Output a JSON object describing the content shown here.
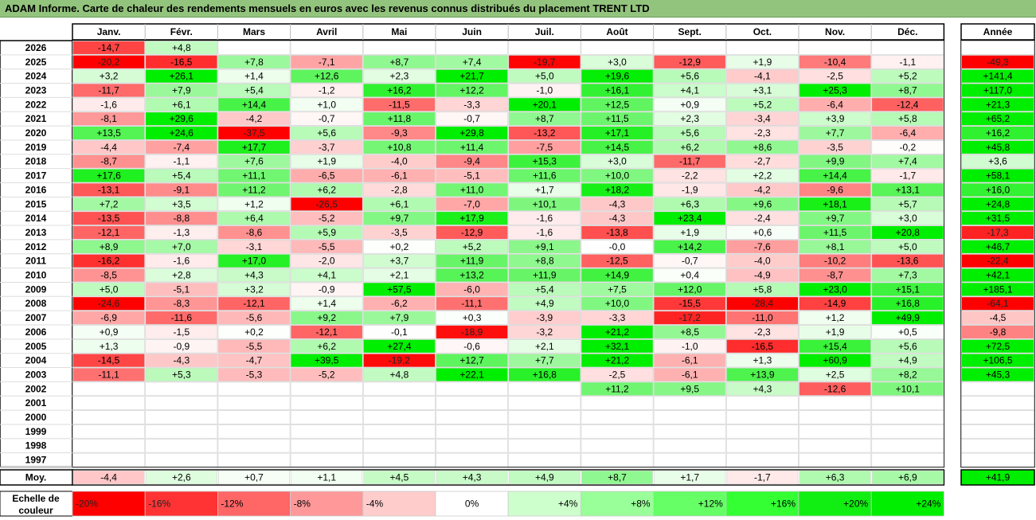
{
  "title": "ADAM Informe. Carte de chaleur des rendements mensuels en euros avec les revenus connus distribués du placement TRENT LTD",
  "chart_data": {
    "type": "heatmap",
    "months": [
      "Janv.",
      "Févr.",
      "Mars",
      "Avril",
      "Mai",
      "Juin",
      "Juil.",
      "Août",
      "Sept.",
      "Oct.",
      "Nov.",
      "Déc."
    ],
    "year_header": "Année",
    "rows": [
      {
        "year": "2026",
        "values": [
          "-14,7",
          "+4,8",
          "",
          "",
          "",
          "",
          "",
          "",
          "",
          "",
          "",
          ""
        ],
        "annual": ""
      },
      {
        "year": "2025",
        "values": [
          "-20,2",
          "-16,5",
          "+7,8",
          "-7,1",
          "+8,7",
          "+7,4",
          "-19,7",
          "+3,0",
          "-12,9",
          "+1,9",
          "-10,4",
          "-1,1"
        ],
        "annual": "-49,3"
      },
      {
        "year": "2024",
        "values": [
          "+3,2",
          "+26,1",
          "+1,4",
          "+12,6",
          "+2,3",
          "+21,7",
          "+5,0",
          "+19,6",
          "+5,6",
          "-4,1",
          "-2,5",
          "+5,2"
        ],
        "annual": "+141,4"
      },
      {
        "year": "2023",
        "values": [
          "-11,7",
          "+7,9",
          "+5,4",
          "-1,2",
          "+16,2",
          "+12,2",
          "-1,0",
          "+16,1",
          "+4,1",
          "+3,1",
          "+25,3",
          "+8,7"
        ],
        "annual": "+117,0"
      },
      {
        "year": "2022",
        "values": [
          "-1,6",
          "+6,1",
          "+14,4",
          "+1,0",
          "-11,5",
          "-3,3",
          "+20,1",
          "+12,5",
          "+0,9",
          "+5,2",
          "-6,4",
          "-12,4"
        ],
        "annual": "+21,3"
      },
      {
        "year": "2021",
        "values": [
          "-8,1",
          "+29,6",
          "-4,2",
          "-0,7",
          "+11,8",
          "-0,7",
          "+8,7",
          "+11,5",
          "+2,3",
          "-3,4",
          "+3,9",
          "+5,8"
        ],
        "annual": "+65,2"
      },
      {
        "year": "2020",
        "values": [
          "+13,5",
          "+24,6",
          "-37,5",
          "+5,6",
          "-9,3",
          "+29,8",
          "-13,2",
          "+17,1",
          "+5,6",
          "-2,3",
          "+7,7",
          "-6,4"
        ],
        "annual": "+16,2"
      },
      {
        "year": "2019",
        "values": [
          "-4,4",
          "-7,4",
          "+17,7",
          "-3,7",
          "+10,8",
          "+11,4",
          "-7,5",
          "+14,5",
          "+6,2",
          "+8,6",
          "-3,5",
          "-0,2"
        ],
        "annual": "+45,8"
      },
      {
        "year": "2018",
        "values": [
          "-8,7",
          "-1,1",
          "+7,6",
          "+1,9",
          "-4,0",
          "-9,4",
          "+15,3",
          "+3,0",
          "-11,7",
          "-2,7",
          "+9,9",
          "+7,4"
        ],
        "annual": "+3,6"
      },
      {
        "year": "2017",
        "values": [
          "+17,6",
          "+5,4",
          "+11,1",
          "-6,5",
          "-6,1",
          "-5,1",
          "+11,6",
          "+10,0",
          "-2,2",
          "+2,2",
          "+14,4",
          "-1,7"
        ],
        "annual": "+58,1"
      },
      {
        "year": "2016",
        "values": [
          "-13,1",
          "-9,1",
          "+11,2",
          "+6,2",
          "-2,8",
          "+11,0",
          "+1,7",
          "+18,2",
          "-1,9",
          "-4,2",
          "-9,6",
          "+13,1"
        ],
        "annual": "+16,0"
      },
      {
        "year": "2015",
        "values": [
          "+7,2",
          "+3,5",
          "+1,2",
          "-26,5",
          "+6,1",
          "-7,0",
          "+10,1",
          "-4,3",
          "+6,3",
          "+9,6",
          "+18,1",
          "+5,7"
        ],
        "annual": "+24,8"
      },
      {
        "year": "2014",
        "values": [
          "-13,5",
          "-8,8",
          "+6,4",
          "-5,2",
          "+9,7",
          "+17,9",
          "-1,6",
          "-4,3",
          "+23,4",
          "-2,4",
          "+9,7",
          "+3,0"
        ],
        "annual": "+31,5"
      },
      {
        "year": "2013",
        "values": [
          "-12,1",
          "-1,3",
          "-8,6",
          "+5,9",
          "-3,5",
          "-12,9",
          "-1,6",
          "-13,8",
          "+1,9",
          "+0,6",
          "+11,5",
          "+20,8"
        ],
        "annual": "-17,3"
      },
      {
        "year": "2012",
        "values": [
          "+8,9",
          "+7,0",
          "-3,1",
          "-5,5",
          "+0,2",
          "+5,2",
          "+9,1",
          "-0,0",
          "+14,2",
          "-7,6",
          "+8,1",
          "+5,0"
        ],
        "annual": "+46,7"
      },
      {
        "year": "2011",
        "values": [
          "-16,2",
          "-1,6",
          "+17,0",
          "-2,0",
          "+3,7",
          "+11,9",
          "+8,8",
          "-12,5",
          "-0,7",
          "-4,0",
          "-10,2",
          "-13,6"
        ],
        "annual": "-22,4"
      },
      {
        "year": "2010",
        "values": [
          "-8,5",
          "+2,8",
          "+4,3",
          "+4,1",
          "+2,1",
          "+13,2",
          "+11,9",
          "+14,9",
          "+0,4",
          "-4,9",
          "-8,7",
          "+7,3"
        ],
        "annual": "+42,1"
      },
      {
        "year": "2009",
        "values": [
          "+5,0",
          "-5,1",
          "+3,2",
          "-0,9",
          "+57,5",
          "-6,0",
          "+5,4",
          "+7,5",
          "+12,0",
          "+5,8",
          "+23,0",
          "+15,1"
        ],
        "annual": "+185,1"
      },
      {
        "year": "2008",
        "values": [
          "-24,6",
          "-8,3",
          "-12,1",
          "+1,4",
          "-6,2",
          "-11,1",
          "+4,9",
          "+10,0",
          "-15,5",
          "-28,4",
          "-14,9",
          "+16,8"
        ],
        "annual": "-64,1"
      },
      {
        "year": "2007",
        "values": [
          "-6,9",
          "-11,6",
          "-5,6",
          "+9,2",
          "+7,9",
          "+0,3",
          "-3,9",
          "-3,3",
          "-17,2",
          "-11,0",
          "+1,2",
          "+49,9"
        ],
        "annual": "-4,5"
      },
      {
        "year": "2006",
        "values": [
          "+0,9",
          "-1,5",
          "+0,2",
          "-12,1",
          "-0,1",
          "-18,9",
          "-3,2",
          "+21,2",
          "+8,5",
          "-2,3",
          "+1,9",
          "+0,5"
        ],
        "annual": "-9,8"
      },
      {
        "year": "2005",
        "values": [
          "+1,3",
          "-0,9",
          "-5,5",
          "+6,2",
          "+27,4",
          "-0,6",
          "+2,1",
          "+32,1",
          "-1,0",
          "-16,5",
          "+15,4",
          "+5,6"
        ],
        "annual": "+72,5"
      },
      {
        "year": "2004",
        "values": [
          "-14,5",
          "-4,3",
          "-4,7",
          "+39,5",
          "-19,2",
          "+12,7",
          "+7,7",
          "+21,2",
          "-6,1",
          "+1,3",
          "+60,9",
          "+4,9"
        ],
        "annual": "+106,5"
      },
      {
        "year": "2003",
        "values": [
          "-11,1",
          "+5,3",
          "-5,3",
          "-5,2",
          "+4,8",
          "+22,1",
          "+16,8",
          "-2,5",
          "-6,1",
          "+13,9",
          "+2,5",
          "+8,2"
        ],
        "annual": "+45,3"
      },
      {
        "year": "2002",
        "values": [
          "",
          "",
          "",
          "",
          "",
          "",
          "",
          "+11,2",
          "+9,5",
          "+4,3",
          "-12,6",
          "+10,1"
        ],
        "annual": ""
      },
      {
        "year": "2001",
        "values": [
          "",
          "",
          "",
          "",
          "",
          "",
          "",
          "",
          "",
          "",
          "",
          ""
        ],
        "annual": ""
      },
      {
        "year": "2000",
        "values": [
          "",
          "",
          "",
          "",
          "",
          "",
          "",
          "",
          "",
          "",
          "",
          ""
        ],
        "annual": ""
      },
      {
        "year": "1999",
        "values": [
          "",
          "",
          "",
          "",
          "",
          "",
          "",
          "",
          "",
          "",
          "",
          ""
        ],
        "annual": ""
      },
      {
        "year": "1998",
        "values": [
          "",
          "",
          "",
          "",
          "",
          "",
          "",
          "",
          "",
          "",
          "",
          ""
        ],
        "annual": ""
      },
      {
        "year": "1997",
        "values": [
          "",
          "",
          "",
          "",
          "",
          "",
          "",
          "",
          "",
          "",
          "",
          ""
        ],
        "annual": ""
      }
    ],
    "average": {
      "label": "Moy.",
      "values": [
        "-4,4",
        "+2,6",
        "+0,7",
        "+1,1",
        "+4,5",
        "+4,3",
        "+4,9",
        "+8,7",
        "+1,7",
        "-1,7",
        "+6,3",
        "+6,9"
      ],
      "annual": "+41,9"
    },
    "scale": {
      "label_line1": "Echelle de",
      "label_line2": "couleur",
      "items": [
        {
          "label": "-20%",
          "color": "#FF0000"
        },
        {
          "label": "-16%",
          "color": "#FF3333"
        },
        {
          "label": "-12%",
          "color": "#FF6666"
        },
        {
          "label": "-8%",
          "color": "#FF9999"
        },
        {
          "label": "-4%",
          "color": "#FFCCCC"
        },
        {
          "label": "0%",
          "color": "#FFFFFF"
        },
        {
          "label": "+4%",
          "color": "#CCFFCC"
        },
        {
          "label": "+8%",
          "color": "#99FF99"
        },
        {
          "label": "+12%",
          "color": "#66FF66"
        },
        {
          "label": "+16%",
          "color": "#33FF33"
        },
        {
          "label": "+20%",
          "color": "#11EE11"
        },
        {
          "label": "+24%",
          "color": "#00EE00"
        }
      ]
    },
    "colors": {
      "title_bar": "#93C47D",
      "negative_max": "#FF0000",
      "positive_max": "#00EE00",
      "neutral": "#FFFFFF"
    }
  }
}
